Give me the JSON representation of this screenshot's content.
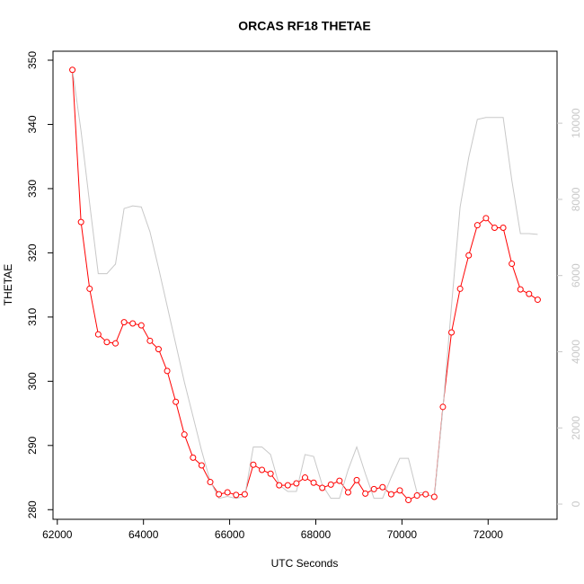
{
  "chart_data": {
    "type": "line",
    "title": "ORCAS RF18 THETAE",
    "xlabel": "UTC Seconds",
    "ylabel": "THETAE",
    "x": [
      62350,
      62550,
      62750,
      62950,
      63150,
      63350,
      63550,
      63750,
      63950,
      64150,
      64350,
      64550,
      64750,
      64950,
      65150,
      65350,
      65550,
      65750,
      65950,
      66150,
      66350,
      66550,
      66750,
      66950,
      67150,
      67350,
      67550,
      67750,
      67950,
      68150,
      68350,
      68550,
      68750,
      68950,
      69150,
      69350,
      69550,
      69750,
      69950,
      70150,
      70350,
      70550,
      70750,
      70950,
      71150,
      71350,
      71550,
      71750,
      71950,
      72150,
      72350,
      72550,
      72750,
      72950,
      73150
    ],
    "series": [
      {
        "color": "#ff0000",
        "marker": "circle",
        "values": [
          348.5,
          324.8,
          314.4,
          307.3,
          306.1,
          305.9,
          309.2,
          309.0,
          308.7,
          306.3,
          305.0,
          301.6,
          296.8,
          291.7,
          288.1,
          286.9,
          284.3,
          282.4,
          282.7,
          282.3,
          282.4,
          287.0,
          286.2,
          285.6,
          283.8,
          283.8,
          284.1,
          285.0,
          284.2,
          283.4,
          283.9,
          284.5,
          282.7,
          284.6,
          282.5,
          283.2,
          283.5,
          282.4,
          283.0,
          281.5,
          282.2,
          282.4,
          282.0,
          296.0,
          307.6,
          314.4,
          319.6,
          324.3,
          325.4,
          323.9,
          323.9,
          318.3,
          314.3,
          313.6,
          312.7
        ]
      },
      {
        "color": "#c8c8c8",
        "axis": "y2",
        "values": [
          11415,
          9800,
          7900,
          6050,
          6050,
          6300,
          7760,
          7830,
          7800,
          7150,
          6200,
          5200,
          4200,
          3200,
          2300,
          1400,
          600,
          150,
          200,
          150,
          200,
          1500,
          1500,
          1300,
          500,
          330,
          330,
          1300,
          1250,
          500,
          150,
          150,
          900,
          1500,
          800,
          150,
          150,
          700,
          1200,
          1200,
          300,
          300,
          150,
          2500,
          5200,
          7800,
          9100,
          10100,
          10150,
          10150,
          10150,
          8500,
          7100,
          7100,
          7080
        ]
      }
    ],
    "xlim": [
      61900,
      73600
    ],
    "xticks": [
      62000,
      64000,
      66000,
      68000,
      70000,
      72000
    ],
    "ylim": [
      278.5,
      351.4
    ],
    "yticks": [
      280,
      290,
      300,
      310,
      320,
      330,
      340,
      350
    ],
    "y2lim": [
      -400,
      11890
    ],
    "y2ticks": [
      0,
      2000,
      4000,
      6000,
      8000,
      10000
    ]
  }
}
